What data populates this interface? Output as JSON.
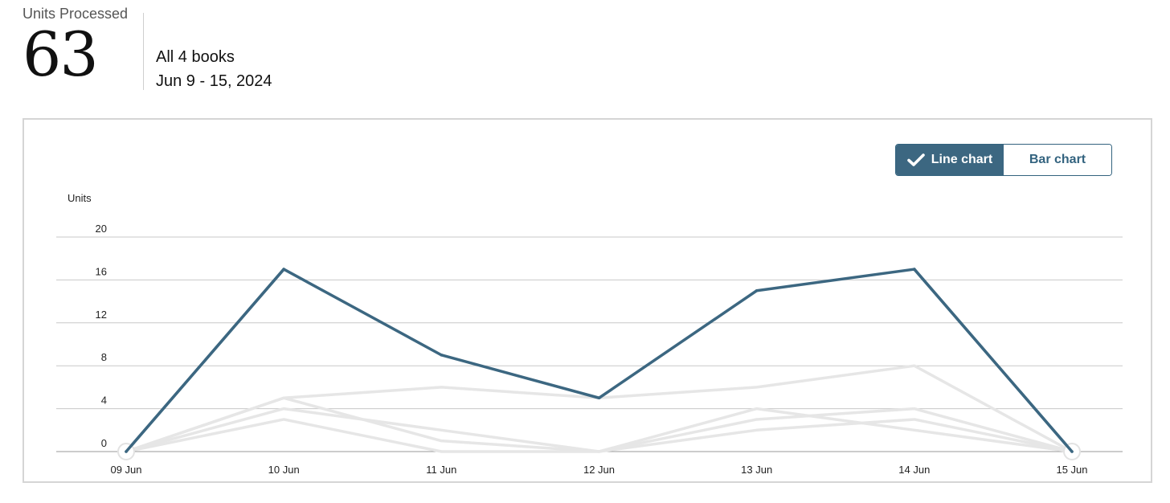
{
  "summary": {
    "label": "Units Processed",
    "value": "63",
    "scope": "All 4 books",
    "date_range": "Jun 9 - 15, 2024"
  },
  "toggle": {
    "line_label": "Line chart",
    "bar_label": "Bar chart",
    "selected": "line"
  },
  "colors": {
    "accent": "#3c6781",
    "faded_series": "#e6e6e6",
    "grid": "#c8c8c8"
  },
  "chart_data": {
    "type": "line",
    "ylabel": "Units",
    "xlabel": "",
    "categories": [
      "09 Jun",
      "10 Jun",
      "11 Jun",
      "12 Jun",
      "13 Jun",
      "14 Jun",
      "15 Jun"
    ],
    "ylim": [
      0,
      20
    ],
    "yticks": [
      0,
      4,
      8,
      12,
      16,
      20
    ],
    "grid": true,
    "series": [
      {
        "values": [
          0,
          17,
          9,
          5,
          15,
          17,
          0
        ],
        "highlight": true
      },
      {
        "values": [
          0,
          5,
          6,
          5,
          6,
          8,
          0
        ],
        "highlight": false
      },
      {
        "values": [
          0,
          5,
          1,
          0,
          3,
          4,
          0
        ],
        "highlight": false
      },
      {
        "values": [
          0,
          4,
          2,
          0,
          4,
          2,
          0
        ],
        "highlight": false
      },
      {
        "values": [
          0,
          3,
          0,
          0,
          2,
          3,
          0
        ],
        "highlight": false
      }
    ]
  }
}
